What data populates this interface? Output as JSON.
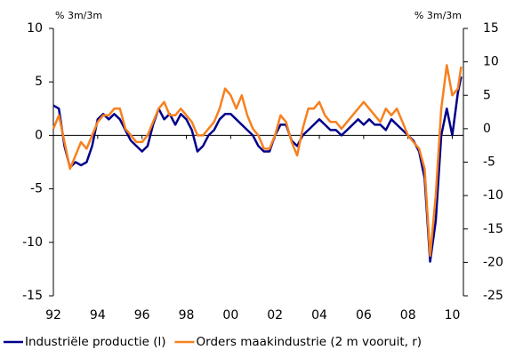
{
  "chart_data": {
    "type": "line",
    "y_label": "% 3m/3m",
    "y2_label": "% 3m/3m",
    "x": [
      1992,
      1992.25,
      1992.5,
      1992.75,
      1993,
      1993.25,
      1993.5,
      1993.75,
      1994,
      1994.25,
      1994.5,
      1994.75,
      1995,
      1995.25,
      1995.5,
      1995.75,
      1996,
      1996.25,
      1996.5,
      1996.75,
      1997,
      1997.25,
      1997.5,
      1997.75,
      1998,
      1998.25,
      1998.5,
      1998.75,
      1999,
      1999.25,
      1999.5,
      1999.75,
      2000,
      2000.25,
      2000.5,
      2000.75,
      2001,
      2001.25,
      2001.5,
      2001.75,
      2002,
      2002.25,
      2002.5,
      2002.75,
      2003,
      2003.25,
      2003.5,
      2003.75,
      2004,
      2004.25,
      2004.5,
      2004.75,
      2005,
      2005.25,
      2005.5,
      2005.75,
      2006,
      2006.25,
      2006.5,
      2006.75,
      2007,
      2007.25,
      2007.5,
      2007.75,
      2008,
      2008.25,
      2008.5,
      2008.75,
      2009,
      2009.25,
      2009.5,
      2009.75,
      2010,
      2010.25,
      2010.4
    ],
    "series": [
      {
        "name": "Industriële productie (l)",
        "color": "#00008b",
        "values": [
          2.8,
          2.5,
          -1,
          -3,
          -2.5,
          -2.8,
          -2.5,
          -1,
          1.5,
          2,
          1.5,
          2,
          1.5,
          0.5,
          -0.5,
          -1,
          -1.5,
          -1,
          1,
          2.5,
          1.5,
          2,
          1,
          2,
          1.5,
          0.5,
          -1.5,
          -1,
          0,
          0.5,
          1.5,
          2,
          2,
          1.5,
          1,
          0.5,
          0,
          -1,
          -1.5,
          -1.5,
          0,
          1,
          1,
          -0.5,
          -1,
          0,
          0.5,
          1,
          1.5,
          1,
          0.5,
          0.5,
          0,
          0.5,
          1,
          1.5,
          1,
          1.5,
          1,
          1,
          0.5,
          1.5,
          1,
          0.5,
          0,
          -0.5,
          -1.5,
          -4,
          -11.8,
          -8,
          0,
          2.5,
          0,
          4,
          5.5
        ]
      },
      {
        "name": "Orders maakindustrie (2 m vooruit, r)",
        "color": "#f7801e",
        "axis": "y2",
        "values": [
          0,
          2,
          -2,
          -6,
          -4,
          -2,
          -3,
          -1,
          1,
          2,
          2,
          3,
          3,
          0,
          -1,
          -2,
          -2,
          -1,
          1,
          3,
          4,
          2,
          2,
          3,
          2,
          1,
          -1,
          -1,
          0,
          1,
          3,
          6,
          5,
          3,
          5,
          2,
          0,
          -1,
          -3,
          -3,
          -1,
          2,
          1,
          -2,
          -4,
          0,
          3,
          3,
          4,
          2,
          1,
          1,
          0,
          1,
          2,
          3,
          4,
          3,
          2,
          1,
          3,
          2,
          3,
          1,
          -1,
          -2,
          -3,
          -6,
          -19,
          -10,
          3,
          9.5,
          5,
          6,
          9.3
        ]
      }
    ],
    "xlim": [
      1992,
      2010.5
    ],
    "xticks": [
      {
        "value": 1992,
        "label": "92"
      },
      {
        "value": 1994,
        "label": "94"
      },
      {
        "value": 1996,
        "label": "96"
      },
      {
        "value": 1998,
        "label": "98"
      },
      {
        "value": 2000,
        "label": "00"
      },
      {
        "value": 2002,
        "label": "02"
      },
      {
        "value": 2004,
        "label": "04"
      },
      {
        "value": 2006,
        "label": "06"
      },
      {
        "value": 2008,
        "label": "08"
      },
      {
        "value": 2010,
        "label": "10"
      }
    ],
    "ylim": [
      -15,
      10
    ],
    "yticks": [
      -15,
      -10,
      -5,
      0,
      5,
      10
    ],
    "y2lim": [
      -25,
      15
    ],
    "y2ticks": [
      -25,
      -20,
      -15,
      -10,
      -5,
      0,
      5,
      10,
      15
    ],
    "legend": "bottom"
  }
}
